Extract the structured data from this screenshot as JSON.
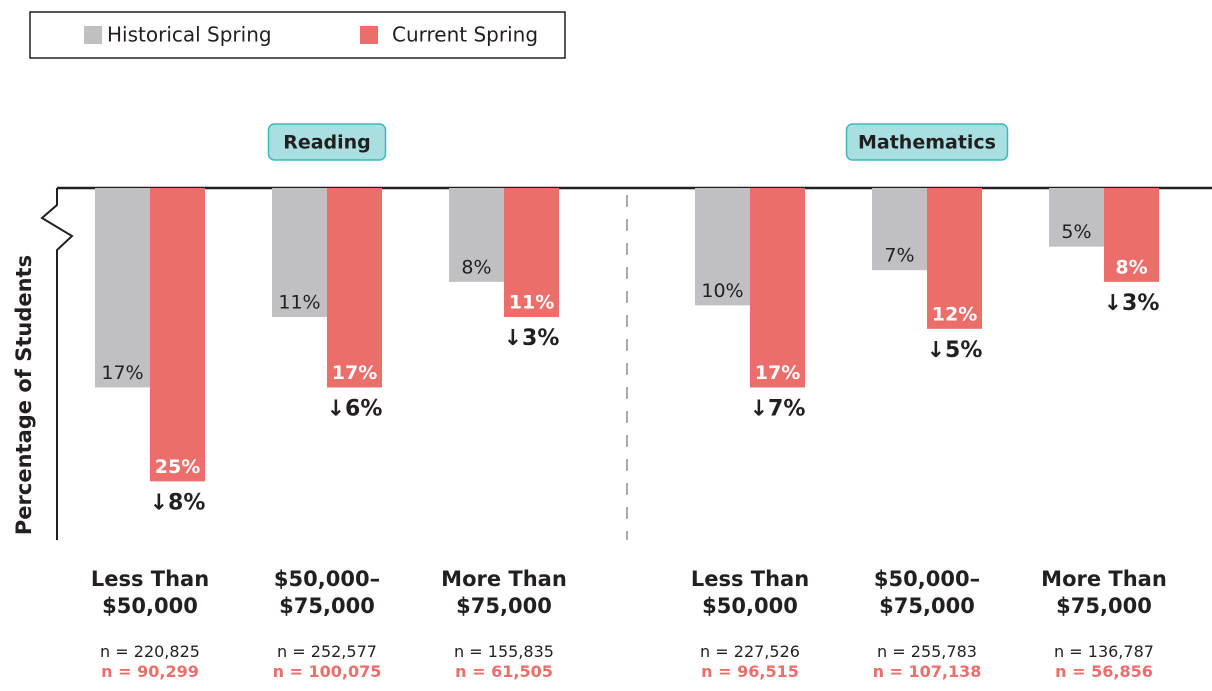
{
  "legend": {
    "items": [
      "Historical Spring",
      "Current Spring"
    ]
  },
  "chart_data": [
    {
      "type": "bar",
      "title": "Reading",
      "y_label": "Percentage of Students",
      "categories": [
        "Less Than\n$50,000",
        "$50,000–\n$75,000",
        "More Than\n$75,000"
      ],
      "ylim": [
        0,
        30
      ],
      "series": [
        {
          "name": "Historical Spring",
          "color": "#c0c0c2",
          "values": [
            17,
            11,
            8
          ],
          "value_labels": [
            "17%",
            "11%",
            "8%"
          ],
          "sample_labels": [
            "n = 220,825",
            "n = 252,577",
            "n = 155,835"
          ]
        },
        {
          "name": "Current Spring",
          "color": "#ec6e6a",
          "values": [
            25,
            17,
            11
          ],
          "value_labels": [
            "25%",
            "17%",
            "11%"
          ],
          "sample_labels": [
            "n = 90,299",
            "n = 100,075",
            "n = 61,505"
          ]
        }
      ],
      "change_labels": [
        "↓8%",
        "↓6%",
        "↓3%"
      ]
    },
    {
      "type": "bar",
      "title": "Mathematics",
      "categories": [
        "Less Than\n$50,000",
        "$50,000–\n$75,000",
        "More Than\n$75,000"
      ],
      "ylim": [
        0,
        30
      ],
      "series": [
        {
          "name": "Historical Spring",
          "color": "#c0c0c2",
          "values": [
            10,
            7,
            5
          ],
          "value_labels": [
            "10%",
            "7%",
            "5%"
          ],
          "sample_labels": [
            "n = 227,526",
            "n = 255,783",
            "n = 136,787"
          ]
        },
        {
          "name": "Current Spring",
          "color": "#ec6e6a",
          "values": [
            17,
            12,
            8
          ],
          "value_labels": [
            "17%",
            "12%",
            "8%"
          ],
          "sample_labels": [
            "n = 96,515",
            "n = 107,138",
            "n = 56,856"
          ]
        }
      ],
      "change_labels": [
        "↓7%",
        "↓5%",
        "↓3%"
      ]
    }
  ]
}
